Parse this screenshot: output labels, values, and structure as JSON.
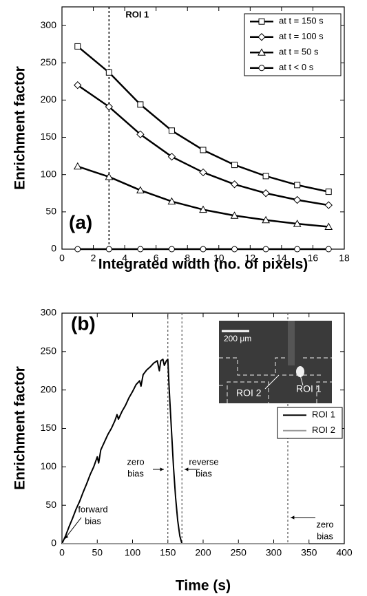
{
  "chart_data": [
    {
      "type": "line",
      "panel_label": "(a)",
      "xlabel": "Integrated width (no. of pixels)",
      "ylabel": "Enrichment factor",
      "xlim": [
        0,
        18
      ],
      "ylim": [
        0,
        325
      ],
      "xticks": [
        0,
        2,
        4,
        6,
        8,
        10,
        12,
        14,
        16,
        18
      ],
      "yticks": [
        0,
        50,
        100,
        150,
        200,
        250,
        300
      ],
      "vline": {
        "x": 3,
        "label": "ROI 1"
      },
      "legend": "upper right",
      "series": [
        {
          "name": "at t = 150 s",
          "color": "#000000",
          "marker": "square",
          "x": [
            1,
            3,
            5,
            7,
            9,
            11,
            13,
            15,
            17
          ],
          "values": [
            272,
            237,
            194,
            159,
            133,
            113,
            98,
            86,
            77
          ]
        },
        {
          "name": "at t = 100 s",
          "color": "#000000",
          "marker": "diamond",
          "x": [
            1,
            3,
            5,
            7,
            9,
            11,
            13,
            15,
            17
          ],
          "values": [
            220,
            191,
            154,
            124,
            103,
            87,
            75,
            66,
            59
          ]
        },
        {
          "name": "at t = 50 s",
          "color": "#000000",
          "marker": "triangle",
          "x": [
            1,
            3,
            5,
            7,
            9,
            11,
            13,
            15,
            17
          ],
          "values": [
            111,
            97,
            79,
            64,
            53,
            45,
            39,
            34,
            30
          ]
        },
        {
          "name": "at t < 0 s",
          "color": "#000000",
          "marker": "circle",
          "x": [
            1,
            3,
            5,
            7,
            9,
            11,
            13,
            15,
            17
          ],
          "values": [
            0,
            0,
            0,
            0,
            0,
            0,
            0,
            0,
            0
          ]
        }
      ]
    },
    {
      "type": "line",
      "panel_label": "(b)",
      "xlabel": "Time (s)",
      "ylabel": "Enrichment factor",
      "xlim": [
        0,
        400
      ],
      "ylim": [
        0,
        300
      ],
      "xticks": [
        0,
        50,
        100,
        150,
        200,
        250,
        300,
        350,
        400
      ],
      "yticks": [
        0,
        50,
        100,
        150,
        200,
        250,
        300
      ],
      "vlines": [
        150,
        170,
        320
      ],
      "annotations": [
        [
          "zero",
          "bias"
        ],
        [
          "reverse",
          "bias"
        ],
        [
          "zero",
          "bias"
        ],
        [
          "forward",
          "bias"
        ]
      ],
      "inset": {
        "scale": "200 μm",
        "labels": [
          "ROI 2",
          "ROI 1"
        ]
      },
      "legend": "right",
      "series": [
        {
          "name": "ROI 1",
          "color": "#000000",
          "x": [
            0,
            5,
            10,
            15,
            20,
            25,
            30,
            35,
            40,
            45,
            50,
            52,
            55,
            60,
            65,
            70,
            75,
            78,
            80,
            85,
            90,
            95,
            100,
            105,
            110,
            112,
            115,
            120,
            125,
            130,
            135,
            138,
            140,
            143,
            145,
            148,
            150,
            152,
            155,
            158,
            161,
            164,
            167,
            170,
            200,
            250,
            300,
            350
          ],
          "values": [
            0,
            10,
            22,
            33,
            45,
            55,
            67,
            78,
            90,
            100,
            113,
            105,
            122,
            132,
            142,
            150,
            160,
            168,
            162,
            172,
            180,
            190,
            198,
            207,
            212,
            205,
            220,
            226,
            230,
            235,
            238,
            225,
            238,
            240,
            232,
            238,
            240,
            200,
            150,
            100,
            60,
            30,
            10,
            0,
            0,
            0,
            0,
            0
          ]
        },
        {
          "name": "ROI 2",
          "color": "#999999",
          "x": [
            0,
            50,
            100,
            150,
            200,
            250,
            300,
            350
          ],
          "values": [
            0,
            0,
            0,
            0,
            0,
            0,
            0,
            0
          ]
        }
      ]
    }
  ]
}
